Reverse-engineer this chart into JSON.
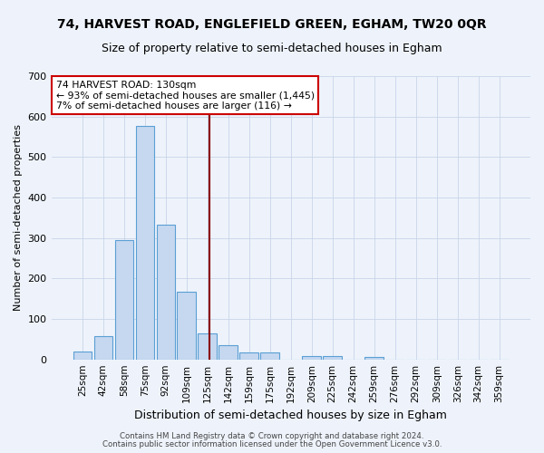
{
  "title": "74, HARVEST ROAD, ENGLEFIELD GREEN, EGHAM, TW20 0QR",
  "subtitle": "Size of property relative to semi-detached houses in Egham",
  "xlabel": "Distribution of semi-detached houses by size in Egham",
  "ylabel": "Number of semi-detached properties",
  "footer1": "Contains HM Land Registry data © Crown copyright and database right 2024.",
  "footer2": "Contains public sector information licensed under the Open Government Licence v3.0.",
  "categories": [
    "25sqm",
    "42sqm",
    "58sqm",
    "75sqm",
    "92sqm",
    "109sqm",
    "125sqm",
    "142sqm",
    "159sqm",
    "175sqm",
    "192sqm",
    "209sqm",
    "225sqm",
    "242sqm",
    "259sqm",
    "276sqm",
    "292sqm",
    "309sqm",
    "326sqm",
    "342sqm",
    "359sqm"
  ],
  "values": [
    20,
    57,
    295,
    577,
    332,
    167,
    64,
    36,
    18,
    17,
    0,
    8,
    9,
    0,
    7,
    0,
    0,
    0,
    0,
    0,
    0
  ],
  "bar_color": "#c5d8f0",
  "bar_edge_color": "#5a9fd4",
  "grid_color": "#c8d4e8",
  "bg_color": "#eef3fb",
  "vline_x": 6.08,
  "vline_color": "#8b0000",
  "annotation_text": "74 HARVEST ROAD: 130sqm\n← 93% of semi-detached houses are smaller (1,445)\n7% of semi-detached houses are larger (116) →",
  "annotation_box_color": "#ffffff",
  "annotation_box_edge": "#cc0000",
  "ylim": [
    0,
    700
  ],
  "yticks": [
    0,
    100,
    200,
    300,
    400,
    500,
    600,
    700
  ],
  "title_fontsize": 10,
  "subtitle_fontsize": 9
}
